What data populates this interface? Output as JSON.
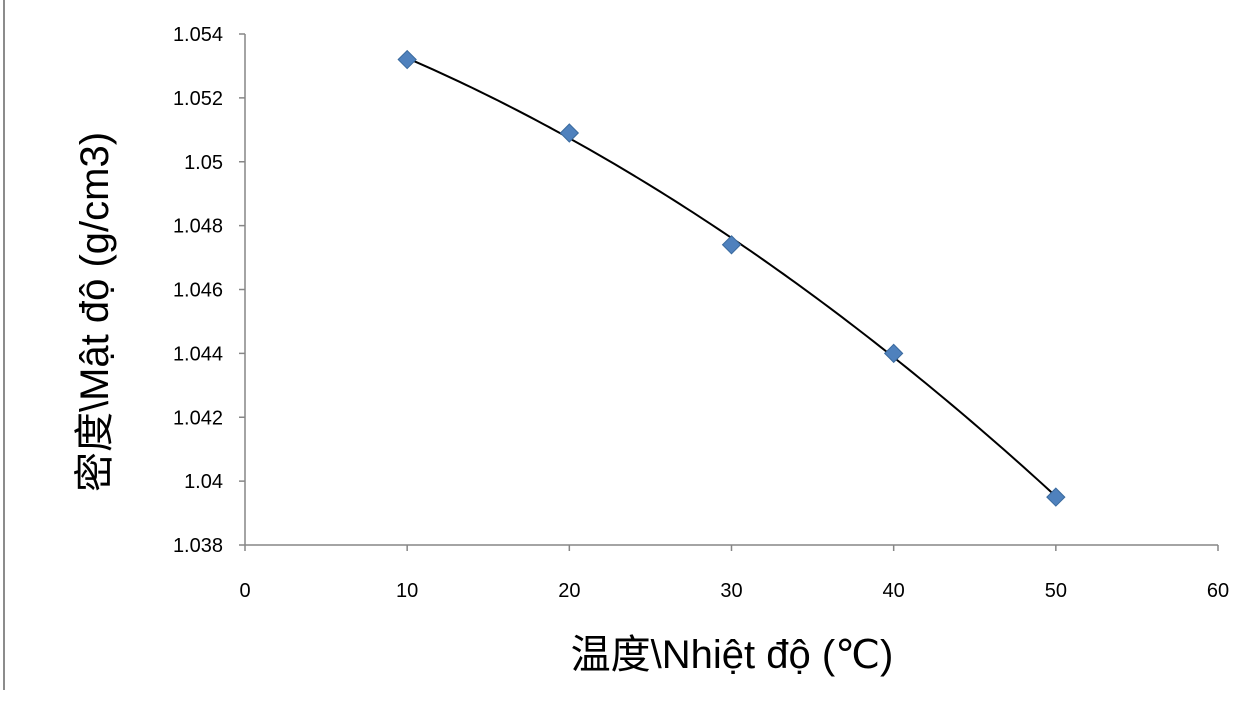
{
  "chart_data": {
    "type": "scatter",
    "xlabel": "温度\\Nhiệt độ (℃)",
    "ylabel": "密度\\Mật độ (g/cm3)",
    "xlim": [
      0,
      60
    ],
    "ylim": [
      1.038,
      1.054
    ],
    "x_ticks": [
      "0",
      "10",
      "20",
      "30",
      "40",
      "50",
      "60"
    ],
    "y_ticks": [
      "1.038",
      "1.04",
      "1.042",
      "1.044",
      "1.046",
      "1.048",
      "1.05",
      "1.052",
      "1.054"
    ],
    "series": [
      {
        "x": [
          10,
          20,
          30,
          40,
          50
        ],
        "y": [
          1.0532,
          1.0509,
          1.0474,
          1.044,
          1.0395
        ],
        "marker": "diamond",
        "color": "#4f81bd"
      }
    ],
    "trendline": {
      "type": "polynomial",
      "order": 2,
      "color": "#000000"
    },
    "grid": false,
    "legend": "none"
  }
}
